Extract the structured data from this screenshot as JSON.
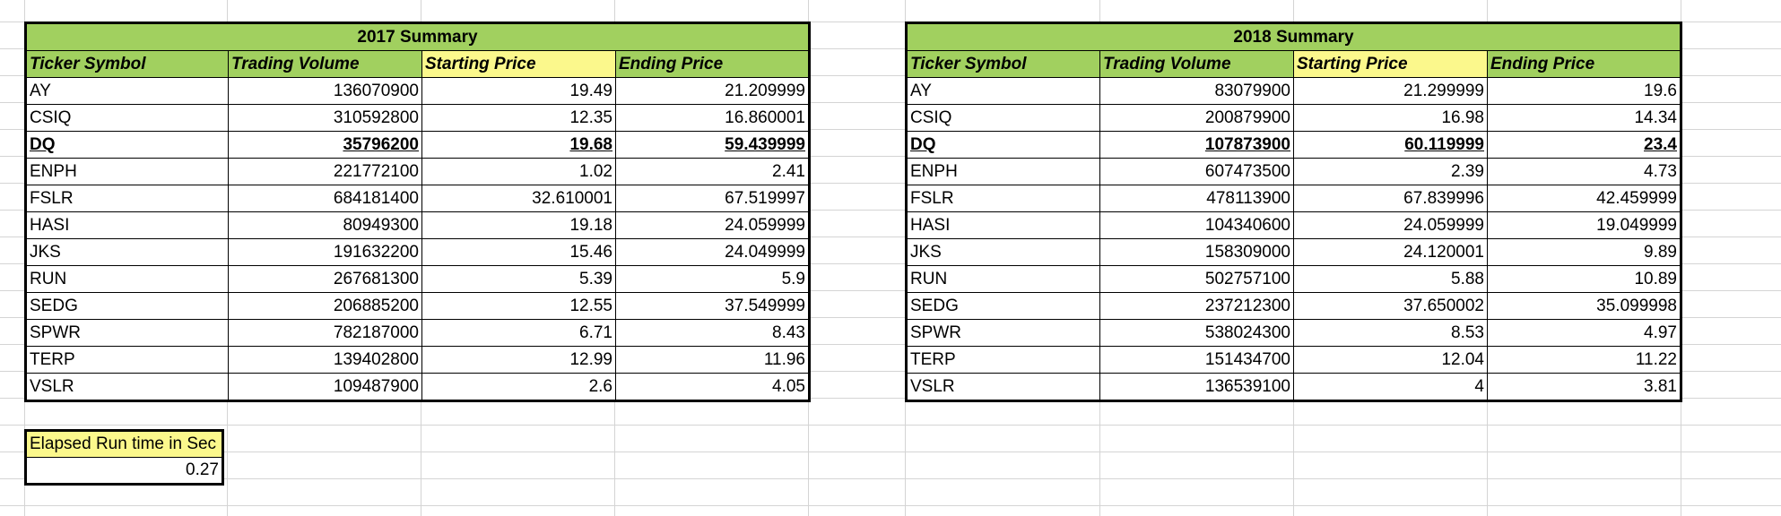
{
  "tables": [
    {
      "title": "2017 Summary",
      "headers": [
        "Ticker Symbol",
        "Trading Volume",
        "Starting Price",
        "Ending Price"
      ],
      "rows": [
        [
          "AY",
          "136070900",
          "19.49",
          "21.209999"
        ],
        [
          "CSIQ",
          "310592800",
          "12.35",
          "16.860001"
        ],
        [
          "DQ",
          "35796200",
          "19.68",
          "59.439999"
        ],
        [
          "ENPH",
          "221772100",
          "1.02",
          "2.41"
        ],
        [
          "FSLR",
          "684181400",
          "32.610001",
          "67.519997"
        ],
        [
          "HASI",
          "80949300",
          "19.18",
          "24.059999"
        ],
        [
          "JKS",
          "191632200",
          "15.46",
          "24.049999"
        ],
        [
          "RUN",
          "267681300",
          "5.39",
          "5.9"
        ],
        [
          "SEDG",
          "206885200",
          "12.55",
          "37.549999"
        ],
        [
          "SPWR",
          "782187000",
          "6.71",
          "8.43"
        ],
        [
          "TERP",
          "139402800",
          "12.99",
          "11.96"
        ],
        [
          "VSLR",
          "109487900",
          "2.6",
          "4.05"
        ]
      ],
      "highlight_row": 2
    },
    {
      "title": "2018 Summary",
      "headers": [
        "Ticker Symbol",
        "Trading Volume",
        "Starting Price",
        "Ending Price"
      ],
      "rows": [
        [
          "AY",
          "83079900",
          "21.299999",
          "19.6"
        ],
        [
          "CSIQ",
          "200879900",
          "16.98",
          "14.34"
        ],
        [
          "DQ",
          "107873900",
          "60.119999",
          "23.4"
        ],
        [
          "ENPH",
          "607473500",
          "2.39",
          "4.73"
        ],
        [
          "FSLR",
          "478113900",
          "67.839996",
          "42.459999"
        ],
        [
          "HASI",
          "104340600",
          "24.059999",
          "19.049999"
        ],
        [
          "JKS",
          "158309000",
          "24.120001",
          "9.89"
        ],
        [
          "RUN",
          "502757100",
          "5.88",
          "10.89"
        ],
        [
          "SEDG",
          "237212300",
          "37.650002",
          "35.099998"
        ],
        [
          "SPWR",
          "538024300",
          "8.53",
          "4.97"
        ],
        [
          "TERP",
          "151434700",
          "12.04",
          "11.22"
        ],
        [
          "VSLR",
          "136539100",
          "4",
          "3.81"
        ]
      ],
      "highlight_row": 2
    }
  ],
  "elapsed": {
    "label": "Elapsed Run time in Sec",
    "value": "0.27"
  },
  "colors": {
    "header_green": "#a1d05f",
    "header_yellow": "#fbf88c",
    "gridline": "#d4d4d4"
  }
}
